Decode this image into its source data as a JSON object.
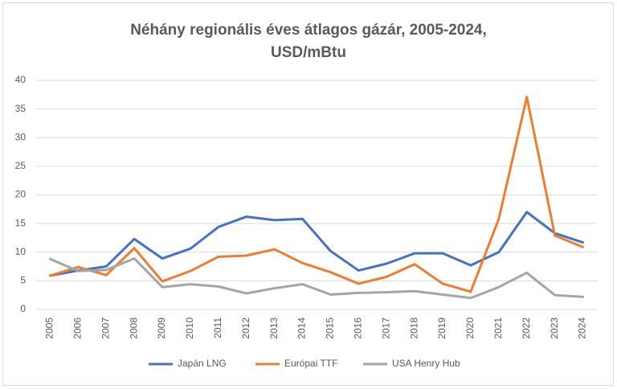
{
  "chart_data": {
    "type": "line",
    "title": [
      "Néhány regionális éves átlagos gázár, 2005-2024,",
      "USD/mBtu"
    ],
    "categories": [
      "2005",
      "2006",
      "2007",
      "2008",
      "2009",
      "2010",
      "2011",
      "2012",
      "2013",
      "2014",
      "2015",
      "2016",
      "2017",
      "2018",
      "2019",
      "2020",
      "2021",
      "2022",
      "2023",
      "2024"
    ],
    "series": [
      {
        "name": "Japán LNG",
        "color": "#4472c4",
        "values": [
          5.9,
          6.8,
          7.5,
          12.3,
          8.9,
          10.6,
          14.4,
          16.2,
          15.6,
          15.8,
          10.2,
          6.8,
          8.0,
          9.8,
          9.8,
          7.7,
          10.0,
          17.0,
          13.3,
          11.7
        ]
      },
      {
        "name": "Európai TTF",
        "color": "#ed7d31",
        "values": [
          5.9,
          7.4,
          6.0,
          10.7,
          4.9,
          6.7,
          9.2,
          9.4,
          10.5,
          8.1,
          6.5,
          4.5,
          5.7,
          7.9,
          4.5,
          3.1,
          15.8,
          37.1,
          12.9,
          10.9
        ]
      },
      {
        "name": "USA Henry Hub",
        "color": "#a5a5a5",
        "values": [
          8.8,
          6.7,
          6.9,
          8.9,
          3.9,
          4.4,
          4.0,
          2.8,
          3.7,
          4.4,
          2.6,
          2.9,
          3.0,
          3.2,
          2.6,
          2.0,
          3.9,
          6.4,
          2.5,
          2.2
        ]
      }
    ],
    "ylim": [
      0,
      40
    ],
    "yticks": [
      0,
      5,
      10,
      15,
      20,
      25,
      30,
      35,
      40
    ],
    "grid": true,
    "legend": "bottom"
  }
}
